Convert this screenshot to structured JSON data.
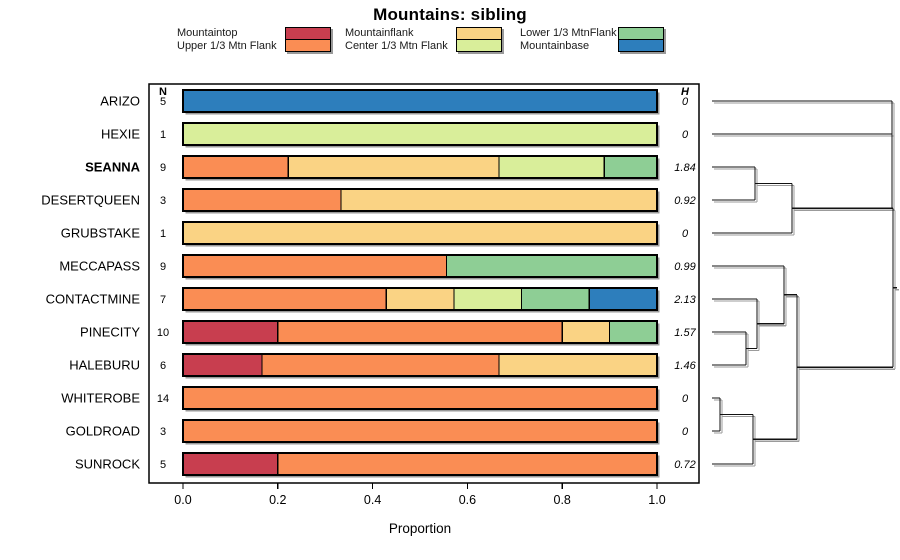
{
  "title": "Mountains: sibling",
  "colors": {
    "mountaintop": "#C83E4F",
    "upper13": "#FA8D54",
    "mountainflank": "#FAD384",
    "center13": "#D9EE9A",
    "lower13": "#8ECE95",
    "mountainbase": "#2D7EBC"
  },
  "legend": {
    "columns": [
      {
        "items": [
          {
            "label": "Mountaintop",
            "state": "mountaintop"
          },
          {
            "label": "Upper 1/3 Mtn Flank",
            "state": "upper13"
          }
        ]
      },
      {
        "items": [
          {
            "label": "Mountainflank",
            "state": "mountainflank"
          },
          {
            "label": "Center 1/3 Mtn Flank",
            "state": "center13"
          }
        ]
      },
      {
        "items": [
          {
            "label": "Lower 1/3 MtnFlank",
            "state": "lower13"
          },
          {
            "label": "Mountainbase",
            "state": "mountainbase"
          }
        ]
      }
    ]
  },
  "chart_data": {
    "type": "bar",
    "subtype": "horizontal-stacked-proportion",
    "xlabel": "Proportion",
    "xticks": [
      "0.0",
      "0.2",
      "0.4",
      "0.6",
      "0.8",
      "1.0"
    ],
    "xlim": [
      0,
      1
    ],
    "n_header": "N",
    "h_header": "H",
    "rows": [
      {
        "name": "ARIZO",
        "bold": false,
        "n": 5,
        "h": "0",
        "segments": [
          {
            "state": "mountainbase",
            "value": 1.0
          }
        ]
      },
      {
        "name": "HEXIE",
        "bold": false,
        "n": 1,
        "h": "0",
        "segments": [
          {
            "state": "center13",
            "value": 1.0
          }
        ]
      },
      {
        "name": "SEANNA",
        "bold": true,
        "n": 9,
        "h": "1.84",
        "segments": [
          {
            "state": "upper13",
            "value": 0.2222
          },
          {
            "state": "mountainflank",
            "value": 0.4444
          },
          {
            "state": "center13",
            "value": 0.2222
          },
          {
            "state": "lower13",
            "value": 0.1111
          }
        ]
      },
      {
        "name": "DESERTQUEEN",
        "bold": false,
        "n": 3,
        "h": "0.92",
        "segments": [
          {
            "state": "upper13",
            "value": 0.3333
          },
          {
            "state": "mountainflank",
            "value": 0.6667
          }
        ]
      },
      {
        "name": "GRUBSTAKE",
        "bold": false,
        "n": 1,
        "h": "0",
        "segments": [
          {
            "state": "mountainflank",
            "value": 1.0
          }
        ]
      },
      {
        "name": "MECCAPASS",
        "bold": false,
        "n": 9,
        "h": "0.99",
        "segments": [
          {
            "state": "upper13",
            "value": 0.5556
          },
          {
            "state": "lower13",
            "value": 0.4444
          }
        ]
      },
      {
        "name": "CONTACTMINE",
        "bold": false,
        "n": 7,
        "h": "2.13",
        "segments": [
          {
            "state": "upper13",
            "value": 0.4286
          },
          {
            "state": "mountainflank",
            "value": 0.1428
          },
          {
            "state": "center13",
            "value": 0.1428
          },
          {
            "state": "lower13",
            "value": 0.1428
          },
          {
            "state": "mountainbase",
            "value": 0.1428
          }
        ]
      },
      {
        "name": "PINECITY",
        "bold": false,
        "n": 10,
        "h": "1.57",
        "segments": [
          {
            "state": "mountaintop",
            "value": 0.2
          },
          {
            "state": "upper13",
            "value": 0.6
          },
          {
            "state": "mountainflank",
            "value": 0.1
          },
          {
            "state": "lower13",
            "value": 0.1
          }
        ]
      },
      {
        "name": "HALEBURU",
        "bold": false,
        "n": 6,
        "h": "1.46",
        "segments": [
          {
            "state": "mountaintop",
            "value": 0.1667
          },
          {
            "state": "upper13",
            "value": 0.5
          },
          {
            "state": "mountainflank",
            "value": 0.3333
          }
        ]
      },
      {
        "name": "WHITEROBE",
        "bold": false,
        "n": 14,
        "h": "0",
        "segments": [
          {
            "state": "upper13",
            "value": 1.0
          }
        ]
      },
      {
        "name": "GOLDROAD",
        "bold": false,
        "n": 3,
        "h": "0",
        "segments": [
          {
            "state": "upper13",
            "value": 1.0
          }
        ]
      },
      {
        "name": "SUNROCK",
        "bold": false,
        "n": 5,
        "h": "0.72",
        "segments": [
          {
            "state": "mountaintop",
            "value": 0.2
          },
          {
            "state": "upper13",
            "value": 0.8
          }
        ]
      }
    ],
    "dendrogram": {
      "y_units": "row-index (1 = top row ARIZO, fractional = cluster midpoints)",
      "x_units": "figure px (join height increases rightward)",
      "segments": [
        [
          712,
          1,
          892,
          1
        ],
        [
          712,
          2,
          892,
          2
        ],
        [
          712,
          3,
          755,
          3
        ],
        [
          712,
          4,
          755,
          4
        ],
        [
          755,
          3,
          755,
          4
        ],
        [
          755,
          3.5,
          792,
          3.5
        ],
        [
          712,
          5,
          792,
          5
        ],
        [
          792,
          3.5,
          792,
          5
        ],
        [
          792,
          4.25,
          893,
          4.25
        ],
        [
          892,
          1,
          892,
          4.25
        ],
        [
          893,
          4.25,
          893,
          9.0625
        ],
        [
          893,
          6.65625,
          897,
          6.65625
        ],
        [
          712,
          6,
          784,
          6
        ],
        [
          712,
          7,
          757,
          7
        ],
        [
          712,
          8,
          746,
          8
        ],
        [
          712,
          9,
          746,
          9
        ],
        [
          746,
          8,
          746,
          9
        ],
        [
          746,
          8.5,
          757,
          8.5
        ],
        [
          757,
          7,
          757,
          8.5
        ],
        [
          757,
          7.75,
          784,
          7.75
        ],
        [
          784,
          6,
          784,
          7.75
        ],
        [
          784,
          6.875,
          797,
          6.875
        ],
        [
          797,
          6.875,
          797,
          11.25
        ],
        [
          712,
          10,
          720,
          10
        ],
        [
          712,
          11,
          720,
          11
        ],
        [
          720,
          10,
          720,
          11
        ],
        [
          720,
          10.5,
          753,
          10.5
        ],
        [
          712,
          12,
          753,
          12
        ],
        [
          753,
          10.5,
          753,
          12
        ],
        [
          753,
          11.25,
          797,
          11.25
        ],
        [
          797,
          9.0625,
          893,
          9.0625
        ]
      ]
    }
  }
}
